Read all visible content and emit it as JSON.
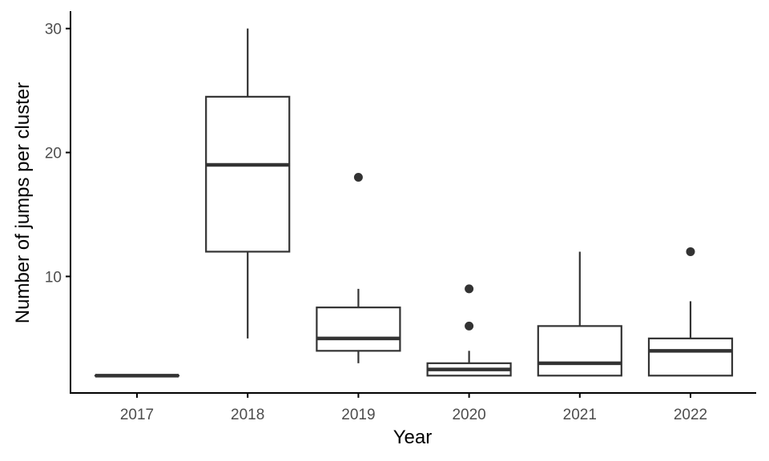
{
  "chart_data": {
    "type": "boxplot",
    "title": "",
    "xlabel": "Year",
    "ylabel": "Number of jumps per cluster",
    "categories": [
      "2017",
      "2018",
      "2019",
      "2020",
      "2021",
      "2022"
    ],
    "y_ticks": [
      10,
      20,
      30
    ],
    "ylim": [
      0.6,
      31.4
    ],
    "grid": false,
    "legend": "none",
    "boxes": [
      {
        "category": "2017",
        "min": 2,
        "q1": 2,
        "median": 2,
        "q3": 2,
        "max": 2,
        "outliers": []
      },
      {
        "category": "2018",
        "min": 5,
        "q1": 12,
        "median": 19,
        "q3": 24.5,
        "max": 30,
        "outliers": []
      },
      {
        "category": "2019",
        "min": 3,
        "q1": 4,
        "median": 5,
        "q3": 7.5,
        "max": 9,
        "outliers": [
          18
        ]
      },
      {
        "category": "2020",
        "min": 2,
        "q1": 2,
        "median": 2.5,
        "q3": 3,
        "max": 4,
        "outliers": [
          6,
          9
        ]
      },
      {
        "category": "2021",
        "min": 2,
        "q1": 2,
        "median": 3,
        "q3": 6,
        "max": 12,
        "outliers": []
      },
      {
        "category": "2022",
        "min": 2,
        "q1": 2,
        "median": 4,
        "q3": 5,
        "max": 8,
        "outliers": [
          12
        ]
      }
    ],
    "colors": {
      "box_stroke": "#333333",
      "axis": "#000000",
      "tick_label": "#4d4d4d"
    }
  }
}
